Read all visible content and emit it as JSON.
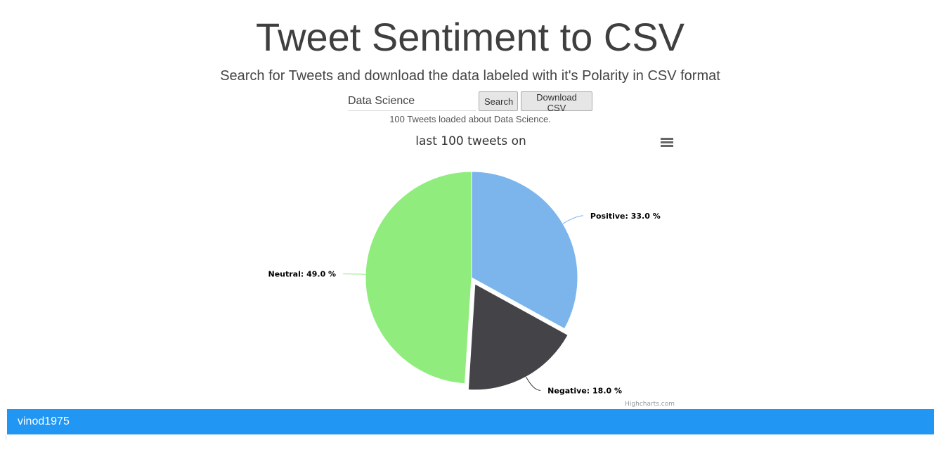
{
  "header": {
    "title": "Tweet Sentiment to CSV",
    "subtitle": "Search for Tweets and download the data labeled with it's Polarity in CSV format"
  },
  "search": {
    "value": "Data Science",
    "search_label": "Search",
    "download_label": "Download CSV"
  },
  "status_text": "100 Tweets loaded about Data Science.",
  "chart_data": {
    "type": "pie",
    "title": "last 100 tweets on",
    "slices": [
      {
        "name": "Positive",
        "value": 33.0,
        "label": "Positive: 33.0 %",
        "color": "#7cb5ec",
        "sliced": false
      },
      {
        "name": "Negative",
        "value": 18.0,
        "label": "Negative: 18.0 %",
        "color": "#434348",
        "sliced": true
      },
      {
        "name": "Neutral",
        "value": 49.0,
        "label": "Neutral: 49.0 %",
        "color": "#90ed7d",
        "sliced": false
      }
    ],
    "credits": "Highcharts.com",
    "menu_icon": "hamburger-menu-icon"
  },
  "footer": {
    "username": "vinod1975",
    "color": "#2196f3"
  }
}
